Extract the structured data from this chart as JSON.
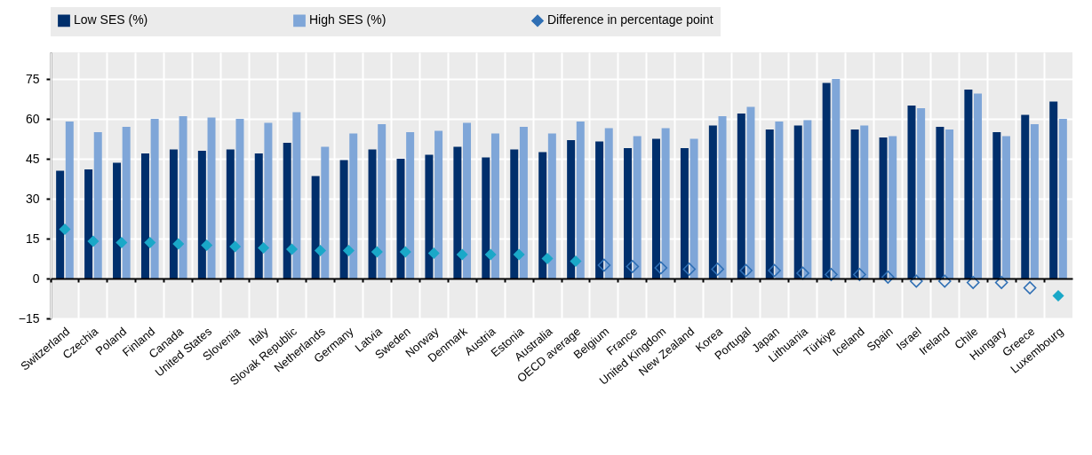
{
  "chart_data": {
    "type": "bar",
    "categories": [
      "Switzerland",
      "Czechia",
      "Poland",
      "Finland",
      "Canada",
      "United States",
      "Slovenia",
      "Italy",
      "Slovak Republic",
      "Netherlands",
      "Germany",
      "Latvia",
      "Sweden",
      "Norway",
      "Denmark",
      "Austria",
      "Estonia",
      "Australia",
      "OECD average",
      "Belgium",
      "France",
      "United Kingdom",
      "New Zealand",
      "Korea",
      "Portugal",
      "Japan",
      "Lithuania",
      "Türkiye",
      "Iceland",
      "Spain",
      "Israel",
      "Ireland",
      "Chile",
      "Hungary",
      "Greece",
      "Luxembourg"
    ],
    "series": [
      {
        "name": "Low SES (%)",
        "color": "#002f6c",
        "values": [
          40.5,
          41,
          43.5,
          47,
          48.5,
          48,
          48.5,
          47,
          51,
          38.5,
          44.5,
          48.5,
          45,
          46.5,
          49.5,
          45.5,
          48.5,
          47.5,
          52,
          51.5,
          49,
          52.5,
          49,
          57.5,
          62,
          56,
          57.5,
          73.5,
          56,
          53,
          65,
          57,
          71,
          55,
          61.5,
          66.5
        ]
      },
      {
        "name": "High SES (%)",
        "color": "#7fa6d8",
        "values": [
          59,
          55,
          57,
          60,
          61,
          60.5,
          60,
          58.5,
          62.5,
          49.5,
          54.5,
          58,
          55,
          55.5,
          58.5,
          54.5,
          57,
          54.5,
          59,
          56.5,
          53.5,
          56.5,
          52.5,
          61,
          64.5,
          59,
          59.5,
          75,
          57.5,
          53.5,
          64,
          56,
          69.5,
          53.5,
          58,
          60
        ]
      },
      {
        "name": "Difference in percentage point",
        "type": "scatter",
        "color": "#2f6fb4",
        "values": [
          null,
          null,
          null,
          null,
          null,
          null,
          null,
          null,
          null,
          null,
          null,
          null,
          null,
          null,
          null,
          null,
          null,
          null,
          null,
          5,
          4.5,
          4,
          3.5,
          3.5,
          3,
          3,
          2,
          1.5,
          1.5,
          0.5,
          -1,
          -1,
          -1.5,
          -1.5,
          -3.5,
          null
        ]
      },
      {
        "type": "scatter",
        "color": "#1aa8c8",
        "values": [
          18.5,
          14,
          13.5,
          13.5,
          13,
          12.5,
          12,
          11.5,
          11,
          10.5,
          10.5,
          10,
          10,
          9.5,
          9,
          9,
          9,
          7.5,
          6.5,
          null,
          null,
          null,
          null,
          null,
          null,
          null,
          null,
          null,
          null,
          null,
          null,
          null,
          null,
          null,
          null,
          -6.5
        ]
      }
    ],
    "ylim": [
      -15,
      85
    ],
    "yticks": [
      -15,
      0,
      15,
      30,
      45,
      60,
      75
    ],
    "grid": true,
    "legend": "top",
    "marker": "diamond"
  }
}
